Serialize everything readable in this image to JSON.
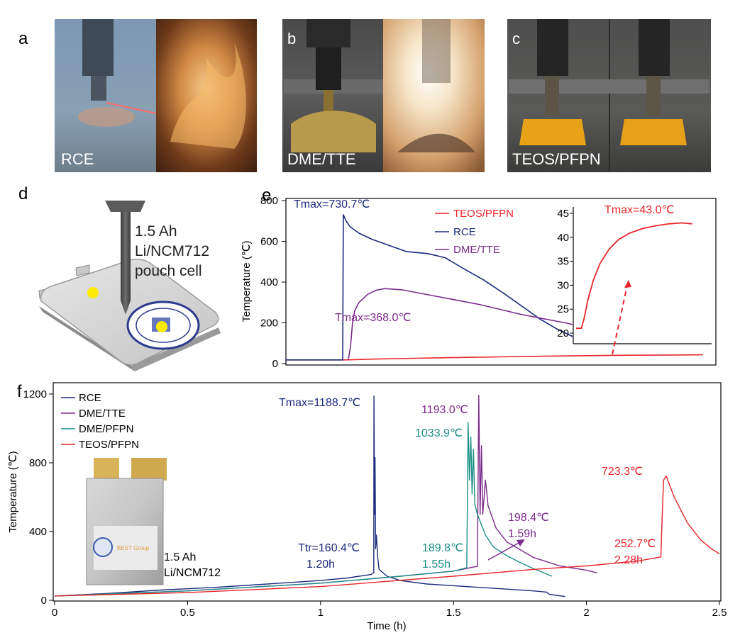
{
  "panels": {
    "a": {
      "label": "a",
      "caption": "RCE"
    },
    "b": {
      "label": "b",
      "caption": "DME/TTE"
    },
    "c": {
      "label": "c",
      "caption": "TEOS/PFPN"
    },
    "d": {
      "label": "d",
      "cell_lines": [
        "1.5 Ah",
        "Li/NCM712",
        "pouch cell"
      ]
    },
    "e": {
      "label": "e"
    },
    "f": {
      "label": "f",
      "photo_text": "BEST Group",
      "cell_lines": [
        "1.5 Ah",
        "Li/NCM712"
      ]
    }
  },
  "chart_data": [
    {
      "id": "e",
      "type": "line",
      "ylabel": "Temperature (℃)",
      "xlabel": "",
      "ylim": [
        0,
        800
      ],
      "yticks": [
        0,
        200,
        400,
        600,
        800
      ],
      "xlim": [
        0,
        100
      ],
      "legend_position": "top-center",
      "series": [
        {
          "name": "TEOS/PFPN",
          "color": "#e8242a",
          "points": [
            [
              0,
              18
            ],
            [
              10,
              18
            ],
            [
              14,
              18
            ],
            [
              20,
              22
            ],
            [
              30,
              26
            ],
            [
              40,
              30
            ],
            [
              50,
              33
            ],
            [
              60,
              36
            ],
            [
              70,
              39
            ],
            [
              80,
              41
            ],
            [
              90,
              42
            ],
            [
              97,
              43
            ]
          ]
        },
        {
          "name": "RCE",
          "color": "#1b2a7d",
          "points": [
            [
              0,
              18
            ],
            [
              10,
              18
            ],
            [
              13.2,
              18
            ],
            [
              13.35,
              730.7
            ],
            [
              14,
              700
            ],
            [
              15,
              670
            ],
            [
              17,
              640
            ],
            [
              20,
              610
            ],
            [
              24,
              580
            ],
            [
              28,
              550
            ],
            [
              33,
              540
            ],
            [
              37,
              520
            ],
            [
              41,
              470
            ],
            [
              46,
              410
            ],
            [
              51,
              340
            ],
            [
              55,
              280
            ],
            [
              59,
              220
            ],
            [
              63,
              170
            ],
            [
              67,
              130
            ],
            [
              70,
              105
            ]
          ]
        },
        {
          "name": "DME/TTE",
          "color": "#7b2a8c",
          "points": [
            [
              14.5,
              18
            ],
            [
              15,
              80
            ],
            [
              15.5,
              200
            ],
            [
              16,
              260
            ],
            [
              17,
              300
            ],
            [
              19,
              340
            ],
            [
              21,
              360
            ],
            [
              23,
              368
            ],
            [
              27,
              362
            ],
            [
              35,
              330
            ],
            [
              45,
              290
            ],
            [
              55,
              240
            ],
            [
              65,
              200
            ],
            [
              73,
              160
            ],
            [
              80,
              130
            ]
          ]
        }
      ],
      "annotations": [
        {
          "text": "Tmax=730.7℃",
          "color": "#1b2a7d"
        },
        {
          "text": "Tmax=368.0℃",
          "color": "#7b2a8c"
        }
      ],
      "inset": {
        "type": "line",
        "ylim": [
          20,
          45
        ],
        "yticks": [
          20,
          25,
          30,
          35,
          40,
          45
        ],
        "annotation": {
          "text": "Tmax=43.0℃",
          "color": "#e8242a"
        },
        "series": [
          {
            "name": "TEOS/PFPN",
            "color": "#e8242a",
            "points": [
              [
                0,
                21
              ],
              [
                0.04,
                21
              ],
              [
                0.06,
                23
              ],
              [
                0.09,
                27
              ],
              [
                0.13,
                31
              ],
              [
                0.18,
                34.5
              ],
              [
                0.25,
                37.5
              ],
              [
                0.32,
                39.5
              ],
              [
                0.4,
                40.8
              ],
              [
                0.5,
                41.8
              ],
              [
                0.6,
                42.4
              ],
              [
                0.7,
                42.8
              ],
              [
                0.8,
                43.0
              ],
              [
                0.88,
                42.8
              ]
            ]
          }
        ]
      }
    },
    {
      "id": "f",
      "type": "line",
      "xlabel": "Time (h)",
      "ylabel": "Temperature (℃)",
      "xlim": [
        0,
        2.5
      ],
      "ylim": [
        0,
        1200
      ],
      "xticks": [
        0,
        0.5,
        1,
        1.5,
        2,
        2.5
      ],
      "yticks": [
        0,
        400,
        800,
        1200
      ],
      "legend_position": "top-left",
      "series": [
        {
          "name": "RCE",
          "color": "#1b2a7d",
          "points": [
            [
              0,
              25
            ],
            [
              0.2,
              40
            ],
            [
              0.4,
              60
            ],
            [
              0.6,
              75
            ],
            [
              0.8,
              95
            ],
            [
              1.0,
              115
            ],
            [
              1.1,
              130
            ],
            [
              1.19,
              150
            ],
            [
              1.2,
              160.4
            ],
            [
              1.201,
              1188.7
            ],
            [
              1.203,
              500
            ],
            [
              1.205,
              830
            ],
            [
              1.207,
              300
            ],
            [
              1.21,
              380
            ],
            [
              1.215,
              250
            ],
            [
              1.22,
              180
            ],
            [
              1.25,
              140
            ],
            [
              1.3,
              115
            ],
            [
              1.4,
              95
            ],
            [
              1.5,
              85
            ],
            [
              1.6,
              75
            ],
            [
              1.7,
              65
            ],
            [
              1.8,
              55
            ],
            [
              1.85,
              48
            ],
            [
              1.86,
              35
            ],
            [
              1.92,
              22
            ]
          ]
        },
        {
          "name": "DME/TTE",
          "color": "#7b2a8c",
          "points": [
            [
              0,
              25
            ],
            [
              0.5,
              55
            ],
            [
              1.0,
              100
            ],
            [
              1.3,
              140
            ],
            [
              1.5,
              170
            ],
            [
              1.59,
              198.4
            ],
            [
              1.595,
              1193
            ],
            [
              1.6,
              500
            ],
            [
              1.605,
              900
            ],
            [
              1.61,
              500
            ],
            [
              1.62,
              700
            ],
            [
              1.63,
              550
            ],
            [
              1.66,
              420
            ],
            [
              1.7,
              340
            ],
            [
              1.8,
              250
            ],
            [
              1.9,
              200
            ],
            [
              2.0,
              175
            ],
            [
              2.04,
              160
            ]
          ]
        },
        {
          "name": "DME/PFPN",
          "color": "#1d8f87",
          "points": [
            [
              0,
              25
            ],
            [
              0.5,
              55
            ],
            [
              1.0,
              100
            ],
            [
              1.3,
              140
            ],
            [
              1.5,
              170
            ],
            [
              1.55,
              189.8
            ],
            [
              1.555,
              1033.9
            ],
            [
              1.56,
              700
            ],
            [
              1.565,
              950
            ],
            [
              1.57,
              620
            ],
            [
              1.575,
              880
            ],
            [
              1.58,
              560
            ],
            [
              1.59,
              500
            ],
            [
              1.62,
              380
            ],
            [
              1.65,
              310
            ],
            [
              1.7,
              260
            ],
            [
              1.75,
              220
            ],
            [
              1.8,
              185
            ],
            [
              1.87,
              140
            ]
          ]
        },
        {
          "name": "TEOS/PFPN",
          "color": "#e8242a",
          "points": [
            [
              0,
              25
            ],
            [
              0.5,
              45
            ],
            [
              1.0,
              80
            ],
            [
              1.5,
              140
            ],
            [
              1.8,
              180
            ],
            [
              2.0,
              200
            ],
            [
              2.2,
              230
            ],
            [
              2.28,
              252.7
            ],
            [
              2.285,
              500
            ],
            [
              2.29,
              700
            ],
            [
              2.3,
              723.3
            ],
            [
              2.33,
              600
            ],
            [
              2.38,
              450
            ],
            [
              2.43,
              350
            ],
            [
              2.47,
              300
            ],
            [
              2.5,
              270
            ]
          ]
        }
      ],
      "annotations": [
        {
          "text": "Tmax=1188.7℃",
          "color": "#1b2a7d"
        },
        {
          "text": "Ttr=160.4℃",
          "color": "#1b2a7d"
        },
        {
          "text": "1.20h",
          "color": "#1b2a7d"
        },
        {
          "text": "1193.0℃",
          "color": "#7b2a8c"
        },
        {
          "text": "198.4℃",
          "color": "#7b2a8c"
        },
        {
          "text": "1.59h",
          "color": "#7b2a8c"
        },
        {
          "text": "1033.9℃",
          "color": "#1d8f87"
        },
        {
          "text": "189.8℃",
          "color": "#1d8f87"
        },
        {
          "text": "1.55h",
          "color": "#1d8f87"
        },
        {
          "text": "723.3℃",
          "color": "#e8242a"
        },
        {
          "text": "252.7℃",
          "color": "#e8242a"
        },
        {
          "text": "2.28h",
          "color": "#e8242a"
        }
      ]
    }
  ]
}
